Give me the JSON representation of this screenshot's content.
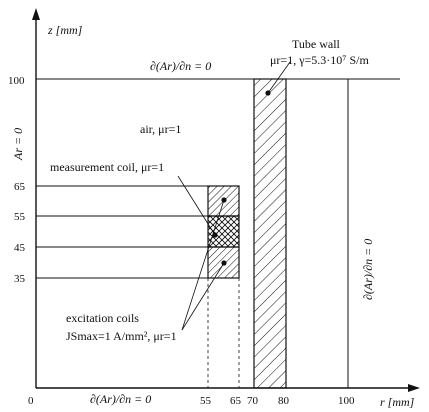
{
  "axes": {
    "z_axis_label": "z [mm]",
    "r_axis_label": "r [mm]",
    "z_ticks": [
      "100",
      "65",
      "55",
      "45",
      "35"
    ],
    "r_ticks": [
      "0",
      "55",
      "65",
      "70",
      "80",
      "100"
    ]
  },
  "boundaries": {
    "top": "∂(Ar)/∂n = 0",
    "bottom": "∂(Ar)/∂n = 0",
    "right": "∂(Ar)/∂n = 0",
    "left": "Ar = 0"
  },
  "regions": {
    "air": "air, μr=1",
    "tube_wall_title": "Tube wall",
    "tube_wall_props": "μr=1, γ=5.3·10⁷ S/m",
    "measurement_coil": "measurement coil, μr=1",
    "excitation_title": "excitation coils",
    "excitation_props": "JSmax=1 A/mm², μr=1"
  },
  "colors": {
    "line": "#111111",
    "background": "#ffffff"
  }
}
